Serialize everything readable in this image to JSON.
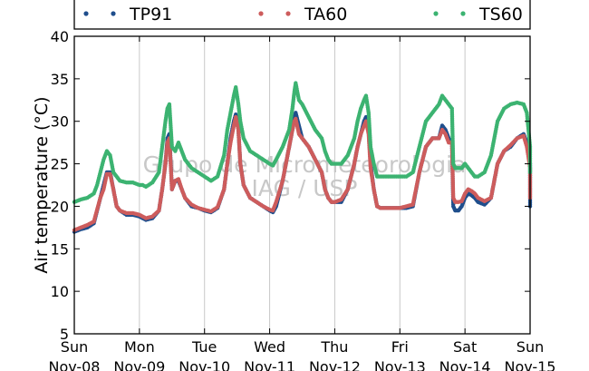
{
  "chart_data": {
    "type": "scatter",
    "ylabel": "Air temperature (°C)",
    "xlabel": "",
    "ylim": [
      5,
      40
    ],
    "yticks": [
      5,
      10,
      15,
      20,
      25,
      30,
      35,
      40
    ],
    "xlim": [
      0,
      7
    ],
    "xtick_days": [
      "Sun",
      "Mon",
      "Tue",
      "Wed",
      "Thu",
      "Fri",
      "Sat",
      "Sun"
    ],
    "xtick_dates": [
      "Nov-08",
      "Nov-09",
      "Nov-10",
      "Nov-11",
      "Nov-12",
      "Nov-13",
      "Nov-14",
      "Nov-15"
    ],
    "x_grid": "vertical lines at each day",
    "legend_position": "top, above plot",
    "watermark_lines": [
      "Grupo de Micrometeorologia",
      "IAG / USP"
    ],
    "series": [
      {
        "name": "TP91",
        "color": "#1f4e8c",
        "points": [
          [
            0,
            17
          ],
          [
            0.1,
            17.3
          ],
          [
            0.2,
            17.5
          ],
          [
            0.3,
            18
          ],
          [
            0.35,
            19.5
          ],
          [
            0.4,
            21
          ],
          [
            0.45,
            22.5
          ],
          [
            0.5,
            24
          ],
          [
            0.55,
            24
          ],
          [
            0.6,
            22
          ],
          [
            0.65,
            20
          ],
          [
            0.7,
            19.5
          ],
          [
            0.8,
            19
          ],
          [
            0.9,
            19
          ],
          [
            1.0,
            18.8
          ],
          [
            1.05,
            18.6
          ],
          [
            1.1,
            18.4
          ],
          [
            1.2,
            18.6
          ],
          [
            1.3,
            19.5
          ],
          [
            1.35,
            22
          ],
          [
            1.4,
            25
          ],
          [
            1.43,
            28
          ],
          [
            1.46,
            28.5
          ],
          [
            1.5,
            22
          ],
          [
            1.55,
            23
          ],
          [
            1.6,
            23
          ],
          [
            1.65,
            22
          ],
          [
            1.7,
            21
          ],
          [
            1.8,
            20
          ],
          [
            1.9,
            19.8
          ],
          [
            2.0,
            19.5
          ],
          [
            2.1,
            19.3
          ],
          [
            2.2,
            19.8
          ],
          [
            2.3,
            22
          ],
          [
            2.35,
            25
          ],
          [
            2.4,
            28
          ],
          [
            2.45,
            30
          ],
          [
            2.48,
            30.8
          ],
          [
            2.52,
            29
          ],
          [
            2.55,
            25
          ],
          [
            2.6,
            22.5
          ],
          [
            2.7,
            21
          ],
          [
            2.8,
            20.5
          ],
          [
            2.9,
            20
          ],
          [
            3.0,
            19.5
          ],
          [
            3.05,
            19.3
          ],
          [
            3.1,
            20
          ],
          [
            3.2,
            23
          ],
          [
            3.3,
            27
          ],
          [
            3.35,
            29
          ],
          [
            3.38,
            30.5
          ],
          [
            3.4,
            31
          ],
          [
            3.45,
            29.5
          ],
          [
            3.5,
            28
          ],
          [
            3.6,
            27
          ],
          [
            3.7,
            25.5
          ],
          [
            3.8,
            24
          ],
          [
            3.85,
            22
          ],
          [
            3.9,
            21
          ],
          [
            3.95,
            20.5
          ],
          [
            4.0,
            20.5
          ],
          [
            4.1,
            20.5
          ],
          [
            4.2,
            22
          ],
          [
            4.3,
            25
          ],
          [
            4.35,
            27
          ],
          [
            4.4,
            28.5
          ],
          [
            4.45,
            30
          ],
          [
            4.48,
            30.5
          ],
          [
            4.52,
            29
          ],
          [
            4.55,
            25
          ],
          [
            4.6,
            22
          ],
          [
            4.65,
            20
          ],
          [
            4.7,
            19.8
          ],
          [
            4.8,
            19.8
          ],
          [
            4.9,
            19.8
          ],
          [
            5.0,
            19.8
          ],
          [
            5.1,
            19.8
          ],
          [
            5.2,
            20
          ],
          [
            5.3,
            24
          ],
          [
            5.4,
            27
          ],
          [
            5.5,
            28
          ],
          [
            5.6,
            28
          ],
          [
            5.65,
            29.5
          ],
          [
            5.7,
            29
          ],
          [
            5.75,
            28
          ],
          [
            5.8,
            27.5
          ],
          [
            5.82,
            20
          ],
          [
            5.85,
            19.5
          ],
          [
            5.9,
            19.5
          ],
          [
            5.95,
            20
          ],
          [
            6.0,
            21
          ],
          [
            6.05,
            21.5
          ],
          [
            6.1,
            21.3
          ],
          [
            6.15,
            21
          ],
          [
            6.2,
            20.5
          ],
          [
            6.3,
            20.2
          ],
          [
            6.4,
            21
          ],
          [
            6.45,
            23
          ],
          [
            6.5,
            25
          ],
          [
            6.6,
            26.5
          ],
          [
            6.7,
            27
          ],
          [
            6.8,
            28
          ],
          [
            6.9,
            28.5
          ],
          [
            6.95,
            27.5
          ],
          [
            7.0,
            25
          ],
          [
            7.0,
            21
          ],
          [
            7.0,
            20
          ]
        ]
      },
      {
        "name": "TA60",
        "color": "#cd5c5c",
        "points": [
          [
            0,
            17.2
          ],
          [
            0.1,
            17.5
          ],
          [
            0.2,
            17.8
          ],
          [
            0.3,
            18.2
          ],
          [
            0.35,
            19.6
          ],
          [
            0.4,
            21
          ],
          [
            0.45,
            22
          ],
          [
            0.5,
            23.8
          ],
          [
            0.55,
            23.8
          ],
          [
            0.6,
            22
          ],
          [
            0.65,
            20
          ],
          [
            0.7,
            19.5
          ],
          [
            0.8,
            19.2
          ],
          [
            0.9,
            19.2
          ],
          [
            1.0,
            19
          ],
          [
            1.05,
            18.8
          ],
          [
            1.1,
            18.6
          ],
          [
            1.2,
            18.8
          ],
          [
            1.3,
            19.5
          ],
          [
            1.35,
            22
          ],
          [
            1.4,
            25
          ],
          [
            1.43,
            27.5
          ],
          [
            1.46,
            28
          ],
          [
            1.5,
            22
          ],
          [
            1.55,
            23
          ],
          [
            1.6,
            23.2
          ],
          [
            1.65,
            22
          ],
          [
            1.7,
            21
          ],
          [
            1.8,
            20.2
          ],
          [
            1.9,
            19.8
          ],
          [
            2.0,
            19.6
          ],
          [
            2.1,
            19.4
          ],
          [
            2.2,
            19.9
          ],
          [
            2.3,
            22
          ],
          [
            2.35,
            25
          ],
          [
            2.4,
            27.5
          ],
          [
            2.45,
            29.5
          ],
          [
            2.48,
            30.5
          ],
          [
            2.52,
            29
          ],
          [
            2.55,
            25
          ],
          [
            2.6,
            22.5
          ],
          [
            2.7,
            21
          ],
          [
            2.8,
            20.5
          ],
          [
            2.9,
            20
          ],
          [
            3.0,
            19.6
          ],
          [
            3.05,
            19.5
          ],
          [
            3.1,
            20.5
          ],
          [
            3.2,
            23
          ],
          [
            3.3,
            27
          ],
          [
            3.35,
            29
          ],
          [
            3.38,
            30
          ],
          [
            3.4,
            30.3
          ],
          [
            3.45,
            28.5
          ],
          [
            3.5,
            28
          ],
          [
            3.6,
            27
          ],
          [
            3.7,
            25.5
          ],
          [
            3.8,
            24
          ],
          [
            3.85,
            22
          ],
          [
            3.9,
            21
          ],
          [
            3.95,
            20.5
          ],
          [
            4.0,
            20.5
          ],
          [
            4.1,
            20.8
          ],
          [
            4.2,
            22
          ],
          [
            4.3,
            25
          ],
          [
            4.35,
            27
          ],
          [
            4.4,
            28.5
          ],
          [
            4.45,
            29.5
          ],
          [
            4.48,
            30
          ],
          [
            4.52,
            28.5
          ],
          [
            4.55,
            24.5
          ],
          [
            4.6,
            22
          ],
          [
            4.65,
            20
          ],
          [
            4.7,
            19.8
          ],
          [
            4.8,
            19.8
          ],
          [
            4.9,
            19.8
          ],
          [
            5.0,
            19.8
          ],
          [
            5.1,
            20
          ],
          [
            5.2,
            20.2
          ],
          [
            5.3,
            24
          ],
          [
            5.4,
            27
          ],
          [
            5.5,
            28
          ],
          [
            5.6,
            28
          ],
          [
            5.65,
            29
          ],
          [
            5.7,
            28.5
          ],
          [
            5.75,
            27.5
          ],
          [
            5.8,
            27.5
          ],
          [
            5.82,
            21
          ],
          [
            5.85,
            20.5
          ],
          [
            5.9,
            20.5
          ],
          [
            5.95,
            20.6
          ],
          [
            6.0,
            21.5
          ],
          [
            6.05,
            22
          ],
          [
            6.1,
            21.8
          ],
          [
            6.15,
            21.5
          ],
          [
            6.2,
            21
          ],
          [
            6.3,
            20.6
          ],
          [
            6.4,
            21
          ],
          [
            6.45,
            23
          ],
          [
            6.5,
            25
          ],
          [
            6.6,
            26.5
          ],
          [
            6.7,
            27.2
          ],
          [
            6.8,
            28
          ],
          [
            6.9,
            28.3
          ],
          [
            6.95,
            27
          ],
          [
            7.0,
            24.5
          ],
          [
            7.0,
            22
          ],
          [
            7.0,
            21
          ]
        ]
      },
      {
        "name": "TS60",
        "color": "#3cb371",
        "points": [
          [
            0,
            20.5
          ],
          [
            0.1,
            20.8
          ],
          [
            0.2,
            21
          ],
          [
            0.3,
            21.5
          ],
          [
            0.35,
            22.5
          ],
          [
            0.4,
            24
          ],
          [
            0.45,
            25.5
          ],
          [
            0.5,
            26.5
          ],
          [
            0.55,
            26
          ],
          [
            0.6,
            24
          ],
          [
            0.65,
            23.5
          ],
          [
            0.7,
            23
          ],
          [
            0.8,
            22.8
          ],
          [
            0.9,
            22.8
          ],
          [
            1.0,
            22.5
          ],
          [
            1.05,
            22.5
          ],
          [
            1.1,
            22.3
          ],
          [
            1.2,
            22.8
          ],
          [
            1.3,
            24
          ],
          [
            1.35,
            27
          ],
          [
            1.4,
            30
          ],
          [
            1.43,
            31.5
          ],
          [
            1.46,
            32
          ],
          [
            1.5,
            27
          ],
          [
            1.55,
            26.5
          ],
          [
            1.6,
            27.5
          ],
          [
            1.65,
            26.5
          ],
          [
            1.7,
            25.5
          ],
          [
            1.8,
            24.5
          ],
          [
            1.9,
            24
          ],
          [
            2.0,
            23.5
          ],
          [
            2.1,
            23
          ],
          [
            2.2,
            23.5
          ],
          [
            2.3,
            26
          ],
          [
            2.35,
            29
          ],
          [
            2.4,
            31
          ],
          [
            2.45,
            33
          ],
          [
            2.48,
            34
          ],
          [
            2.52,
            32
          ],
          [
            2.55,
            30
          ],
          [
            2.6,
            28
          ],
          [
            2.7,
            26.5
          ],
          [
            2.8,
            26
          ],
          [
            2.9,
            25.5
          ],
          [
            3.0,
            25
          ],
          [
            3.05,
            24.8
          ],
          [
            3.1,
            25.5
          ],
          [
            3.2,
            27
          ],
          [
            3.3,
            29
          ],
          [
            3.35,
            31.5
          ],
          [
            3.38,
            33.5
          ],
          [
            3.4,
            34.5
          ],
          [
            3.45,
            32.5
          ],
          [
            3.5,
            32
          ],
          [
            3.6,
            30.5
          ],
          [
            3.7,
            29
          ],
          [
            3.8,
            28
          ],
          [
            3.85,
            26.5
          ],
          [
            3.9,
            25.5
          ],
          [
            3.95,
            25
          ],
          [
            4.0,
            25
          ],
          [
            4.1,
            25
          ],
          [
            4.2,
            26
          ],
          [
            4.3,
            28
          ],
          [
            4.35,
            30
          ],
          [
            4.4,
            31.5
          ],
          [
            4.45,
            32.5
          ],
          [
            4.48,
            33
          ],
          [
            4.52,
            31
          ],
          [
            4.55,
            27
          ],
          [
            4.6,
            25
          ],
          [
            4.65,
            23.5
          ],
          [
            4.7,
            23.5
          ],
          [
            4.8,
            23.5
          ],
          [
            4.9,
            23.5
          ],
          [
            5.0,
            23.5
          ],
          [
            5.1,
            23.5
          ],
          [
            5.2,
            24
          ],
          [
            5.3,
            27
          ],
          [
            5.4,
            30
          ],
          [
            5.5,
            31
          ],
          [
            5.6,
            32
          ],
          [
            5.65,
            33
          ],
          [
            5.7,
            32.5
          ],
          [
            5.75,
            32
          ],
          [
            5.8,
            31.5
          ],
          [
            5.82,
            25
          ],
          [
            5.85,
            24.5
          ],
          [
            5.9,
            24.5
          ],
          [
            5.95,
            24.5
          ],
          [
            6.0,
            25
          ],
          [
            6.05,
            24.5
          ],
          [
            6.1,
            24
          ],
          [
            6.15,
            23.5
          ],
          [
            6.2,
            23.5
          ],
          [
            6.3,
            24
          ],
          [
            6.4,
            26
          ],
          [
            6.45,
            28
          ],
          [
            6.5,
            30
          ],
          [
            6.6,
            31.5
          ],
          [
            6.7,
            32
          ],
          [
            6.8,
            32.2
          ],
          [
            6.9,
            32
          ],
          [
            6.95,
            31
          ],
          [
            7.0,
            27
          ],
          [
            7.0,
            24.5
          ],
          [
            7.0,
            24
          ]
        ]
      }
    ]
  }
}
